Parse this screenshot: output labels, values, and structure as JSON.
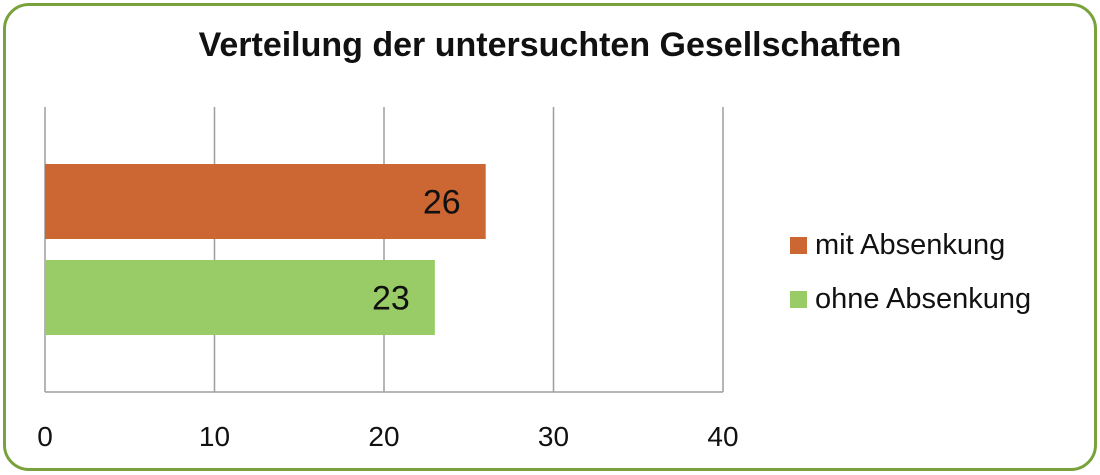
{
  "chart_data": {
    "type": "bar",
    "orientation": "horizontal",
    "title": "Verteilung der untersuchten Gesellschaften",
    "series": [
      {
        "name": "mit Absenkung",
        "value": 26,
        "color": "#cc6633"
      },
      {
        "name": "ohne Absenkung",
        "value": 23,
        "color": "#99cc66"
      }
    ],
    "xlim": [
      0,
      40
    ],
    "xticks": [
      0,
      10,
      20,
      30,
      40
    ],
    "grid": true,
    "legend_position": "right",
    "data_labels": true
  },
  "colors": {
    "frame_border": "#7aa23c",
    "gridline": "#9e9e9e"
  }
}
